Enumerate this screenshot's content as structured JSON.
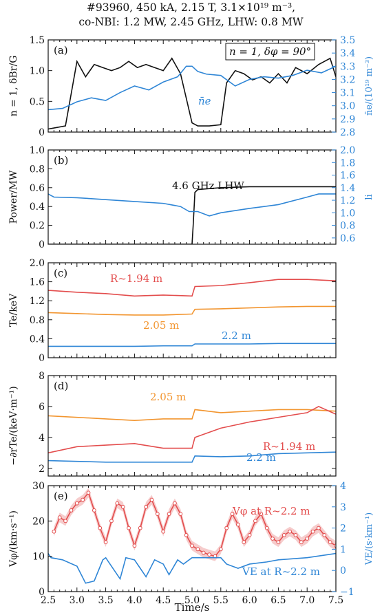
{
  "title": {
    "line1": "#93960, 450 kA, 2.15 T, 3.1×10¹⁹ m⁻³,",
    "line2": "co-NBI: 1.2 MW, 2.45 GHz, LHW: 0.8 MW"
  },
  "xlabel": "Time/s",
  "colors": {
    "black": "#111111",
    "blue": "#2f86d6",
    "red": "#e34d4d",
    "orange": "#f2952f",
    "red_band": "#f2b7b7",
    "blue_light": "#9ec6ee"
  },
  "chart_data": [
    {
      "type": "line",
      "panel": "(a)",
      "xlim": [
        2.5,
        7.5
      ],
      "ylabel": "n = 1, δBr/G",
      "ylim": [
        0,
        1.5
      ],
      "yticks": [
        "0",
        "0.5",
        "1.0",
        "1.5"
      ],
      "y2label": "n̄e/(10¹⁹ m⁻³)",
      "y2lim": [
        2.8,
        3.5
      ],
      "y2ticks": [
        "2.8",
        "2.9",
        "3.0",
        "3.1",
        "3.2",
        "3.3",
        "3.4",
        "3.5"
      ],
      "annotations": [
        "n = 1, δφ = 90°",
        "n̄e"
      ],
      "series": [
        {
          "axis": "left",
          "color": "black",
          "x": [
            2.5,
            2.8,
            3.0,
            3.15,
            3.3,
            3.45,
            3.6,
            3.75,
            3.9,
            4.05,
            4.2,
            4.35,
            4.5,
            4.65,
            4.8,
            5.0,
            5.1,
            5.2,
            5.3,
            5.5,
            5.6,
            5.75,
            5.9,
            6.05,
            6.2,
            6.35,
            6.5,
            6.65,
            6.8,
            7.0,
            7.2,
            7.4,
            7.5
          ],
          "y": [
            0.05,
            0.1,
            1.15,
            0.9,
            1.1,
            1.05,
            1.0,
            1.05,
            1.15,
            1.05,
            1.1,
            1.05,
            1.0,
            1.2,
            0.95,
            0.15,
            0.1,
            0.1,
            0.1,
            0.12,
            0.8,
            1.0,
            0.95,
            0.85,
            0.9,
            0.8,
            0.95,
            0.8,
            1.05,
            0.95,
            1.1,
            1.2,
            0.9
          ]
        },
        {
          "axis": "right",
          "name": "n̄e",
          "color": "blue",
          "x": [
            2.5,
            2.75,
            3.0,
            3.25,
            3.5,
            3.75,
            4.0,
            4.25,
            4.5,
            4.75,
            4.9,
            5.0,
            5.1,
            5.25,
            5.5,
            5.75,
            6.0,
            6.25,
            6.5,
            6.75,
            7.0,
            7.25,
            7.5
          ],
          "y": [
            2.97,
            2.98,
            3.03,
            3.06,
            3.04,
            3.1,
            3.15,
            3.12,
            3.18,
            3.22,
            3.3,
            3.3,
            3.26,
            3.24,
            3.23,
            3.15,
            3.2,
            3.22,
            3.21,
            3.23,
            3.27,
            3.25,
            3.3
          ]
        }
      ]
    },
    {
      "type": "line",
      "panel": "(b)",
      "xlim": [
        2.5,
        7.5
      ],
      "ylabel": "Power/MW",
      "ylim": [
        0,
        1.0
      ],
      "yticks": [
        "0",
        "0.2",
        "0.4",
        "0.6",
        "0.8",
        "1.0"
      ],
      "y2label": "li",
      "y2lim": [
        0.5,
        2.0
      ],
      "y2ticks": [
        "0.6",
        "0.8",
        "1.0",
        "1.2",
        "1.4",
        "1.6",
        "1.8",
        "2.0"
      ],
      "annotations": [
        "4.6 GHz LHW"
      ],
      "series": [
        {
          "axis": "left",
          "name": "4.6 GHz LHW",
          "color": "black",
          "x": [
            2.5,
            5.0,
            5.02,
            5.05,
            5.1,
            5.5,
            6.0,
            6.5,
            7.0,
            7.5
          ],
          "y": [
            0.0,
            0.0,
            0.2,
            0.55,
            0.58,
            0.6,
            0.61,
            0.61,
            0.61,
            0.61
          ]
        },
        {
          "axis": "right",
          "color": "blue",
          "x": [
            2.5,
            2.6,
            3.0,
            3.5,
            4.0,
            4.5,
            4.8,
            4.95,
            5.1,
            5.3,
            5.5,
            6.0,
            6.5,
            7.0,
            7.2,
            7.5
          ],
          "y": [
            1.3,
            1.25,
            1.24,
            1.21,
            1.18,
            1.15,
            1.1,
            1.02,
            1.02,
            0.95,
            1.0,
            1.07,
            1.13,
            1.25,
            1.3,
            1.3
          ]
        }
      ]
    },
    {
      "type": "line",
      "panel": "(c)",
      "xlim": [
        2.5,
        7.5
      ],
      "ylabel": "Te/keV",
      "ylim": [
        0,
        2.0
      ],
      "yticks": [
        "0",
        "0.4",
        "0.8",
        "1.2",
        "1.6",
        "2.0"
      ],
      "annotations": [
        "R~1.94 m",
        "2.05 m",
        "2.2 m"
      ],
      "series": [
        {
          "name": "R~1.94 m",
          "color": "red",
          "x": [
            2.5,
            3.0,
            3.5,
            4.0,
            4.5,
            5.0,
            5.05,
            5.5,
            6.0,
            6.5,
            7.0,
            7.5
          ],
          "y": [
            1.42,
            1.38,
            1.35,
            1.3,
            1.32,
            1.3,
            1.5,
            1.52,
            1.58,
            1.65,
            1.65,
            1.62
          ]
        },
        {
          "name": "2.05 m",
          "color": "orange",
          "x": [
            2.5,
            3.0,
            3.5,
            4.0,
            4.5,
            5.0,
            5.05,
            5.5,
            6.0,
            6.5,
            7.0,
            7.5
          ],
          "y": [
            0.95,
            0.93,
            0.91,
            0.9,
            0.9,
            0.92,
            1.02,
            1.03,
            1.05,
            1.07,
            1.08,
            1.08
          ]
        },
        {
          "name": "2.2 m",
          "color": "blue",
          "x": [
            2.5,
            3.0,
            3.5,
            4.0,
            4.5,
            5.0,
            5.05,
            5.5,
            6.0,
            6.5,
            7.0,
            7.5
          ],
          "y": [
            0.24,
            0.24,
            0.24,
            0.24,
            0.25,
            0.25,
            0.29,
            0.29,
            0.29,
            0.3,
            0.3,
            0.3
          ]
        }
      ]
    },
    {
      "type": "line",
      "panel": "(d)",
      "xlim": [
        2.5,
        7.5
      ],
      "ylabel": "−∂rTe/(keV·m⁻¹)",
      "ylim": [
        1.5,
        8.0
      ],
      "yticks": [
        "2",
        "4",
        "6",
        "8"
      ],
      "annotations": [
        "2.05 m",
        "R~1.94 m",
        "2.2 m"
      ],
      "series": [
        {
          "name": "2.05 m",
          "color": "orange",
          "x": [
            2.5,
            3.0,
            3.5,
            4.0,
            4.5,
            5.0,
            5.05,
            5.5,
            6.0,
            6.5,
            7.0,
            7.5
          ],
          "y": [
            5.4,
            5.3,
            5.2,
            5.1,
            5.2,
            5.2,
            5.8,
            5.6,
            5.7,
            5.8,
            5.8,
            5.7
          ]
        },
        {
          "name": "R~1.94 m",
          "color": "red",
          "x": [
            2.5,
            3.0,
            3.5,
            4.0,
            4.5,
            5.0,
            5.05,
            5.5,
            6.0,
            6.5,
            7.0,
            7.2,
            7.5
          ],
          "y": [
            3.0,
            3.4,
            3.5,
            3.6,
            3.3,
            3.3,
            4.0,
            4.6,
            5.0,
            5.3,
            5.6,
            6.0,
            5.5
          ]
        },
        {
          "name": "2.2 m",
          "color": "blue",
          "x": [
            2.5,
            3.0,
            3.5,
            4.0,
            4.5,
            5.0,
            5.05,
            5.5,
            6.0,
            6.5,
            7.0,
            7.5
          ],
          "y": [
            2.5,
            2.45,
            2.4,
            2.4,
            2.4,
            2.4,
            2.8,
            2.75,
            2.8,
            2.95,
            3.0,
            3.05
          ]
        }
      ]
    },
    {
      "type": "line",
      "panel": "(e)",
      "xlim": [
        2.5,
        7.5
      ],
      "xticks": [
        "2.5",
        "3.0",
        "3.5",
        "4.0",
        "4.5",
        "5.0",
        "5.5",
        "6.0",
        "6.5",
        "7.0",
        "7.5"
      ],
      "ylabel": "Vφ/(km·s⁻¹)",
      "ylim": [
        0,
        30
      ],
      "yticks": [
        "0",
        "10",
        "20",
        "30"
      ],
      "y2label": "VE/(s·km⁻¹)",
      "y2lim": [
        -1,
        4
      ],
      "y2ticks": [
        "−1",
        "0",
        "1",
        "2",
        "3",
        "4"
      ],
      "annotations": [
        "Vφ at R~2.2 m",
        "VE at R~2.2 m"
      ],
      "series": [
        {
          "axis": "left",
          "name": "Vφ at R~2.2 m",
          "color": "red",
          "markers": "open-circle",
          "x": [
            2.6,
            2.7,
            2.8,
            2.9,
            3.0,
            3.1,
            3.2,
            3.3,
            3.4,
            3.5,
            3.6,
            3.7,
            3.8,
            3.9,
            4.0,
            4.1,
            4.2,
            4.3,
            4.4,
            4.5,
            4.6,
            4.7,
            4.8,
            4.9,
            5.0,
            5.1,
            5.2,
            5.3,
            5.4,
            5.5,
            5.6,
            5.7,
            5.8,
            5.9,
            6.0,
            6.1,
            6.2,
            6.3,
            6.4,
            6.5,
            6.6,
            6.7,
            6.8,
            6.9,
            7.0,
            7.1,
            7.2,
            7.3,
            7.4,
            7.5
          ],
          "y": [
            17,
            21,
            20,
            23,
            25,
            26,
            28,
            23,
            18,
            14,
            20,
            25,
            24,
            18,
            13,
            18,
            24,
            26,
            22,
            17,
            22,
            25,
            22,
            16,
            13,
            12,
            11,
            10.5,
            10,
            12,
            18,
            22,
            19,
            14,
            16,
            20,
            22,
            18,
            15,
            14,
            16,
            17,
            16,
            14,
            15,
            17,
            18,
            16,
            14,
            13
          ]
        },
        {
          "axis": "right",
          "name": "VE at R~2.2 m",
          "color": "blue",
          "x": [
            2.5,
            2.55,
            2.75,
            3.0,
            3.15,
            3.3,
            3.45,
            3.5,
            3.6,
            3.75,
            3.85,
            4.0,
            4.1,
            4.2,
            4.35,
            4.5,
            4.6,
            4.75,
            4.85,
            5.0,
            5.5,
            5.6,
            5.8,
            6.0,
            6.3,
            6.5,
            7.0,
            7.5
          ],
          "y": [
            0.8,
            0.6,
            0.5,
            0.2,
            -0.6,
            -0.5,
            0.5,
            0.6,
            0.2,
            -0.4,
            0.6,
            0.5,
            0.1,
            -0.3,
            0.5,
            0.3,
            -0.2,
            0.5,
            0.3,
            0.6,
            0.6,
            0.3,
            0.1,
            0.3,
            0.4,
            0.5,
            0.6,
            0.8
          ]
        }
      ]
    }
  ]
}
